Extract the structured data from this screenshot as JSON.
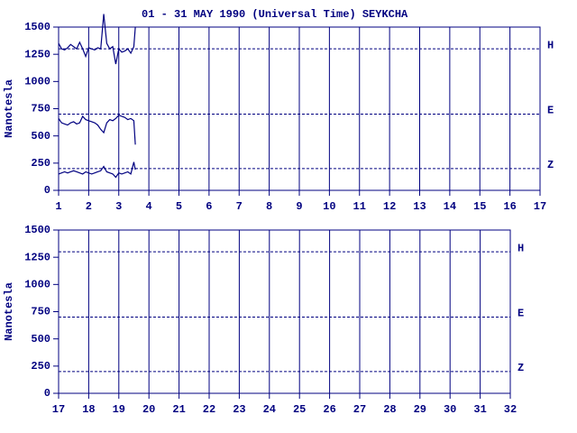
{
  "chart_data": [
    {
      "type": "line",
      "title": "01 - 31 MAY 1990 (Universal Time) SEYKCHA",
      "y_label": "Nanotesla",
      "xlim": [
        1,
        17
      ],
      "xticks": [
        1,
        2,
        3,
        4,
        5,
        6,
        7,
        8,
        9,
        10,
        11,
        12,
        13,
        14,
        15,
        16,
        17
      ],
      "ylim": [
        0,
        1500
      ],
      "yticks": [
        0,
        250,
        500,
        750,
        1000,
        1250,
        1500
      ],
      "baselines": [
        {
          "value": 1300,
          "label": "H"
        },
        {
          "value": 700,
          "label": "E"
        },
        {
          "value": 200,
          "label": "Z"
        }
      ],
      "x": [
        1.0,
        1.1,
        1.2,
        1.3,
        1.4,
        1.5,
        1.6,
        1.7,
        1.8,
        1.9,
        2.0,
        2.1,
        2.2,
        2.3,
        2.4,
        2.5,
        2.6,
        2.7,
        2.8,
        2.9,
        3.0,
        3.1,
        3.2,
        3.3,
        3.4,
        3.5,
        3.55
      ],
      "series": [
        {
          "name": "H",
          "color": "#000080",
          "values": [
            1350,
            1300,
            1290,
            1310,
            1340,
            1320,
            1300,
            1360,
            1300,
            1230,
            1310,
            1300,
            1290,
            1310,
            1300,
            1620,
            1350,
            1300,
            1320,
            1160,
            1300,
            1270,
            1280,
            1300,
            1260,
            1320,
            1500
          ]
        },
        {
          "name": "E",
          "color": "#000080",
          "values": [
            660,
            620,
            610,
            600,
            620,
            630,
            610,
            620,
            680,
            650,
            640,
            630,
            620,
            600,
            560,
            530,
            620,
            650,
            640,
            660,
            690,
            680,
            670,
            650,
            660,
            640,
            420
          ]
        },
        {
          "name": "Z",
          "color": "#000080",
          "values": [
            150,
            160,
            170,
            160,
            170,
            180,
            170,
            160,
            150,
            170,
            160,
            150,
            160,
            170,
            180,
            220,
            170,
            160,
            150,
            120,
            160,
            150,
            160,
            170,
            150,
            260,
            190
          ]
        }
      ]
    },
    {
      "type": "line",
      "y_label": "Nanotesla",
      "xlim": [
        17,
        32
      ],
      "xticks": [
        17,
        18,
        19,
        20,
        21,
        22,
        23,
        24,
        25,
        26,
        27,
        28,
        29,
        30,
        31,
        32
      ],
      "ylim": [
        0,
        1500
      ],
      "yticks": [
        0,
        250,
        500,
        750,
        1000,
        1250,
        1500
      ],
      "baselines": [
        {
          "value": 1300,
          "label": "H"
        },
        {
          "value": 700,
          "label": "E"
        },
        {
          "value": 200,
          "label": "Z"
        }
      ],
      "series": []
    }
  ]
}
